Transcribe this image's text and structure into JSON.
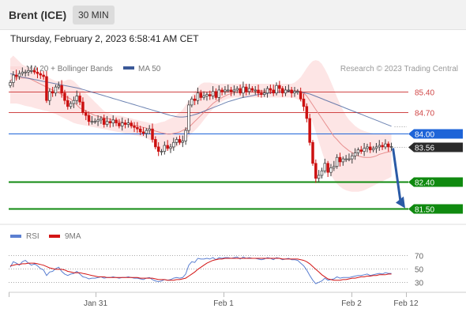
{
  "header": {
    "title": "Brent (ICE)",
    "interval": "30 MIN",
    "timestamp": "Thursday, February 2, 2023 6:58:41 AM CET"
  },
  "legend": {
    "ma_bollinger": "MA 20 + Bollinger Bands",
    "ma50": "MA 50",
    "credit": "Research © 2023 Trading Central",
    "rsi": "RSI",
    "rsi_ma": "9MA"
  },
  "colors": {
    "up": "#3a3a3a",
    "down": "#cc1111",
    "ma20": "#e89090",
    "band": "#fde2e2",
    "ma50": "#3b5998",
    "resistance": "#d04545",
    "pivot": "#1e64d8",
    "support": "#108a10",
    "current": "#2b2b2b",
    "arrow": "#2a5aa6",
    "rsi": "#5b7fd1",
    "rsi_ma": "#d31515"
  },
  "chart_data": [
    {
      "type": "candlestick",
      "x_ticks": [
        "Jan 31",
        "Feb 1",
        "Feb 2",
        "Feb 12"
      ],
      "ylim": [
        81.2,
        85.95
      ],
      "levels": [
        {
          "label": "85.40",
          "value": 85.4,
          "kind": "resistance"
        },
        {
          "label": "84.70",
          "value": 84.7,
          "kind": "resistance"
        },
        {
          "label": "84.00",
          "value": 84.0,
          "kind": "pivot"
        },
        {
          "label": "83.56",
          "value": 83.56,
          "kind": "current"
        },
        {
          "label": "82.40",
          "value": 82.4,
          "kind": "support"
        },
        {
          "label": "81.50",
          "value": 81.5,
          "kind": "support"
        }
      ],
      "close": [
        85.7,
        85.95,
        85.9,
        86.0,
        86.05,
        86.05,
        86.1,
        86.1,
        86.05,
        86.0,
        85.95,
        85.9,
        85.1,
        85.4,
        85.35,
        85.55,
        85.6,
        85.35,
        85.1,
        84.9,
        85.0,
        85.1,
        85.25,
        85.05,
        84.7,
        84.6,
        84.4,
        84.4,
        84.4,
        84.45,
        84.5,
        84.3,
        84.4,
        84.35,
        84.45,
        84.35,
        84.25,
        84.35,
        84.3,
        84.35,
        84.25,
        84.2,
        84.15,
        84.05,
        84.0,
        84.1,
        84.15,
        83.8,
        83.55,
        83.4,
        83.4,
        83.6,
        83.5,
        83.55,
        83.7,
        83.8,
        83.7,
        83.75,
        84.1,
        84.95,
        85.15,
        85.1,
        85.35,
        85.2,
        85.25,
        85.3,
        85.25,
        85.4,
        85.2,
        85.45,
        85.4,
        85.45,
        85.45,
        85.4,
        85.45,
        85.5,
        85.35,
        85.55,
        85.4,
        85.5,
        85.45,
        85.45,
        85.35,
        85.3,
        85.35,
        85.5,
        85.45,
        85.35,
        85.6,
        85.5,
        85.35,
        85.45,
        85.45,
        85.35,
        85.4,
        85.4,
        85.15,
        84.9,
        84.5,
        83.7,
        83.0,
        82.5,
        82.6,
        82.75,
        83.0,
        82.7,
        82.85,
        82.9,
        83.2,
        83.05,
        83.15,
        83.15,
        83.15,
        83.25,
        83.35,
        83.45,
        83.4,
        83.5,
        83.55,
        83.45,
        83.5,
        83.55,
        83.6,
        83.55,
        83.65,
        83.55,
        83.56
      ],
      "ma20": [
        85.75,
        85.85,
        85.85,
        85.85,
        85.85,
        85.85,
        85.85,
        85.8,
        85.75,
        85.7,
        85.65,
        85.6,
        85.55,
        85.5,
        85.45,
        85.4,
        85.35,
        85.3,
        85.25,
        85.2,
        85.15,
        85.05,
        84.95,
        84.85,
        84.8,
        84.75,
        84.7,
        84.65,
        84.6,
        84.58,
        84.55,
        84.52,
        84.5,
        84.48,
        84.45,
        84.42,
        84.4,
        84.38,
        84.35,
        84.32,
        84.3,
        84.27,
        84.25,
        84.22,
        84.2,
        84.18,
        84.15,
        84.12,
        84.08,
        84.05,
        84.02,
        84.0,
        83.98,
        83.98,
        84.0,
        84.02,
        84.05,
        84.1,
        84.15,
        84.2,
        84.3,
        84.4,
        84.5,
        84.6,
        84.7,
        84.8,
        84.9,
        85.0,
        85.07,
        85.13,
        85.2,
        85.25,
        85.3,
        85.33,
        85.35,
        85.38,
        85.4,
        85.4,
        85.4,
        85.42,
        85.43,
        85.43,
        85.43,
        85.43,
        85.43,
        85.43,
        85.43,
        85.43,
        85.43,
        85.43,
        85.43,
        85.43,
        85.43,
        85.43,
        85.43,
        85.43,
        85.4,
        85.35,
        85.25,
        85.1,
        84.95,
        84.8,
        84.65,
        84.5,
        84.35,
        84.2,
        84.05,
        83.9,
        83.8,
        83.68,
        83.58,
        83.5,
        83.42,
        83.36,
        83.3,
        83.25,
        83.22,
        83.2,
        83.2,
        83.2,
        83.22,
        83.25,
        83.3,
        83.33,
        83.36,
        83.38,
        83.4
      ],
      "bollinger_upper": [
        86.5,
        86.6,
        86.5,
        86.4,
        86.3,
        86.25,
        86.2,
        86.15,
        86.1,
        86.05,
        86.0,
        85.95,
        85.9,
        85.85,
        85.8,
        85.75,
        85.75,
        85.75,
        85.75,
        85.8,
        85.8,
        85.75,
        85.65,
        85.55,
        85.45,
        85.35,
        85.25,
        85.15,
        85.05,
        84.95,
        84.85,
        84.75,
        84.7,
        84.65,
        84.62,
        84.6,
        84.6,
        84.58,
        84.55,
        84.52,
        84.5,
        84.47,
        84.45,
        84.42,
        84.4,
        84.38,
        84.35,
        84.33,
        84.32,
        84.35,
        84.38,
        84.4,
        84.45,
        84.5,
        84.55,
        84.62,
        84.7,
        84.8,
        84.95,
        85.1,
        85.25,
        85.4,
        85.55,
        85.65,
        85.7,
        85.7,
        85.7,
        85.68,
        85.66,
        85.66,
        85.66,
        85.66,
        85.66,
        85.66,
        85.66,
        85.66,
        85.66,
        85.66,
        85.66,
        85.66,
        85.66,
        85.66,
        85.66,
        85.66,
        85.66,
        85.66,
        85.66,
        85.66,
        85.66,
        85.66,
        85.66,
        85.66,
        85.66,
        85.66,
        85.7,
        85.78,
        85.88,
        86.02,
        86.18,
        86.32,
        86.42,
        86.45,
        86.42,
        86.32,
        86.15,
        85.95,
        85.72,
        85.48,
        85.22,
        84.98,
        84.78,
        84.6,
        84.45,
        84.35,
        84.25,
        84.18,
        84.12,
        84.08,
        84.05,
        84.02,
        84.0,
        84.0,
        84.0,
        84.0,
        84.0,
        84.0,
        84.0
      ],
      "bollinger_lower": [
        85.0,
        85.0,
        85.0,
        84.98,
        84.95,
        84.92,
        84.9,
        84.88,
        84.85,
        84.82,
        84.8,
        84.77,
        84.75,
        84.72,
        84.68,
        84.65,
        84.6,
        84.55,
        84.5,
        84.45,
        84.4,
        84.35,
        84.32,
        84.3,
        84.28,
        84.26,
        84.24,
        84.22,
        84.2,
        84.18,
        84.16,
        84.14,
        84.12,
        84.1,
        84.08,
        84.06,
        84.04,
        84.02,
        84.0,
        83.98,
        83.96,
        83.94,
        83.92,
        83.9,
        83.88,
        83.84,
        83.79,
        83.72,
        83.62,
        83.52,
        83.45,
        83.42,
        83.42,
        83.45,
        83.5,
        83.55,
        83.62,
        83.7,
        83.8,
        83.9,
        84.0,
        84.1,
        84.2,
        84.32,
        84.45,
        84.58,
        84.7,
        84.82,
        84.92,
        85.0,
        85.07,
        85.12,
        85.16,
        85.18,
        85.2,
        85.2,
        85.2,
        85.2,
        85.2,
        85.2,
        85.2,
        85.2,
        85.2,
        85.2,
        85.2,
        85.2,
        85.2,
        85.2,
        85.2,
        85.2,
        85.2,
        85.2,
        85.2,
        85.2,
        85.18,
        85.14,
        85.08,
        84.98,
        84.82,
        84.6,
        84.35,
        84.05,
        83.72,
        83.4,
        83.1,
        82.85,
        82.62,
        82.45,
        82.32,
        82.22,
        82.15,
        82.1,
        82.07,
        82.05,
        82.05,
        82.05,
        82.07,
        82.1,
        82.15,
        82.2,
        82.25,
        82.3,
        82.35,
        82.4,
        82.45,
        82.5,
        82.55
      ],
      "ma50": [
        86.0,
        85.97,
        85.94,
        85.91,
        85.88,
        85.86,
        85.84,
        85.82,
        85.8,
        85.78,
        85.76,
        85.74,
        85.72,
        85.7,
        85.68,
        85.66,
        85.64,
        85.62,
        85.6,
        85.58,
        85.56,
        85.54,
        85.52,
        85.5,
        85.47,
        85.44,
        85.41,
        85.38,
        85.35,
        85.32,
        85.29,
        85.26,
        85.23,
        85.2,
        85.17,
        85.14,
        85.11,
        85.08,
        85.05,
        85.02,
        84.99,
        84.96,
        84.93,
        84.9,
        84.87,
        84.84,
        84.81,
        84.78,
        84.75,
        84.72,
        84.69,
        84.66,
        84.63,
        84.6,
        84.58,
        84.56,
        84.55,
        84.55,
        84.56,
        84.58,
        84.6,
        84.63,
        84.66,
        84.7,
        84.74,
        84.78,
        84.82,
        84.86,
        84.9,
        84.94,
        84.98,
        85.02,
        85.06,
        85.09,
        85.12,
        85.15,
        85.18,
        85.2,
        85.22,
        85.24,
        85.26,
        85.28,
        85.3,
        85.32,
        85.33,
        85.34,
        85.35,
        85.36,
        85.37,
        85.38,
        85.39,
        85.4,
        85.4,
        85.4,
        85.4,
        85.4,
        85.38,
        85.36,
        85.34,
        85.32,
        85.28,
        85.24,
        85.2,
        85.16,
        85.12,
        85.08,
        85.04,
        85.0,
        84.96,
        84.92,
        84.88,
        84.84,
        84.8,
        84.76,
        84.72,
        84.68,
        84.64,
        84.6,
        84.56,
        84.52,
        84.48,
        84.44,
        84.4,
        84.36,
        84.32,
        84.28,
        84.24
      ]
    },
    {
      "type": "line",
      "series": [
        {
          "name": "RSI",
          "values": [
            52,
            60,
            58,
            55,
            60,
            62,
            58,
            55,
            57,
            54,
            50,
            48,
            40,
            45,
            46,
            50,
            52,
            46,
            42,
            40,
            42,
            43,
            46,
            42,
            38,
            37,
            35,
            36,
            36,
            37,
            38,
            36,
            37,
            37,
            38,
            37,
            36,
            37,
            37,
            38,
            37,
            36,
            36,
            35,
            34,
            36,
            37,
            34,
            32,
            31,
            32,
            34,
            33,
            34,
            36,
            37,
            36,
            37,
            42,
            55,
            60,
            59,
            65,
            64,
            64,
            65,
            64,
            66,
            63,
            66,
            65,
            66,
            66,
            65,
            66,
            67,
            64,
            67,
            65,
            66,
            65,
            65,
            64,
            63,
            64,
            66,
            65,
            63,
            66,
            65,
            63,
            64,
            65,
            63,
            63,
            62,
            58,
            54,
            48,
            40,
            33,
            28,
            30,
            32,
            36,
            33,
            34,
            35,
            38,
            36,
            37,
            37,
            37,
            38,
            39,
            40,
            40,
            41,
            42,
            40,
            41,
            42,
            43,
            42,
            44,
            43,
            43
          ]
        },
        {
          "name": "9MA",
          "values": [
            54,
            55,
            56,
            56,
            57,
            57,
            58,
            58,
            58,
            57,
            56,
            55,
            53,
            51,
            50,
            49,
            49,
            49,
            48,
            46,
            45,
            44,
            44,
            44,
            43,
            42,
            41,
            40,
            39,
            38,
            38,
            38,
            37,
            37,
            37,
            37,
            37,
            37,
            37,
            37,
            37,
            37,
            37,
            36,
            36,
            36,
            36,
            36,
            35,
            34,
            34,
            34,
            33,
            33,
            33,
            34,
            34,
            35,
            36,
            39,
            42,
            45,
            49,
            52,
            55,
            58,
            60,
            62,
            63,
            64,
            64,
            65,
            65,
            65,
            65,
            65,
            65,
            65,
            65,
            65,
            65,
            65,
            65,
            65,
            65,
            65,
            65,
            65,
            65,
            65,
            64,
            64,
            64,
            64,
            64,
            64,
            63,
            62,
            60,
            57,
            53,
            49,
            45,
            41,
            38,
            35,
            34,
            33,
            33,
            33,
            34,
            34,
            35,
            36,
            36,
            37,
            38,
            38,
            39,
            39,
            40,
            40,
            41,
            41,
            41,
            42,
            42
          ]
        }
      ],
      "y_ticks": [
        "70",
        "50",
        "30"
      ],
      "ylim": [
        20,
        80
      ]
    }
  ]
}
